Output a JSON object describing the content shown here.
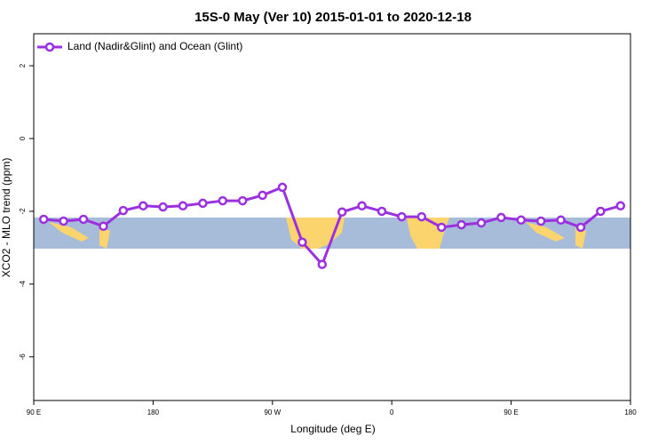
{
  "chart_data": {
    "type": "line",
    "title": "15S-0 May (Ver 10)   2015-01-01 to 2020-12-18",
    "xlabel": "Longitude (deg E)",
    "ylabel": "XCO2 - MLO trend (ppm)",
    "x": [
      97.5,
      112.5,
      127.5,
      142.5,
      157.5,
      172.5,
      187.5,
      202.5,
      217.5,
      232.5,
      247.5,
      262.5,
      277.5,
      292.5,
      307.5,
      322.5,
      337.5,
      352.5,
      367.5,
      382.5,
      397.5,
      412.5,
      427.5,
      442.5,
      457.5,
      472.5,
      487.5,
      502.5,
      517.5,
      532.5
    ],
    "series": [
      {
        "name": "Land (Nadir&Glint) and Ocean (Glint)",
        "color": "#9b30e0",
        "values": [
          -2.22,
          -2.27,
          -2.22,
          -2.41,
          -1.98,
          -1.85,
          -1.88,
          -1.85,
          -1.78,
          -1.71,
          -1.71,
          -1.56,
          -1.34,
          -2.85,
          -3.46,
          -2.02,
          -1.85,
          -2.0,
          -2.15,
          -2.15,
          -2.44,
          -2.37,
          -2.32,
          -2.17,
          -2.24,
          -2.27,
          -2.24,
          -2.44,
          -2.0,
          -1.85
        ]
      }
    ],
    "xlim": [
      90,
      540
    ],
    "xticks": [
      {
        "value": 90,
        "label": "90 E"
      },
      180,
      {
        "value": 270,
        "label": "90 W"
      },
      {
        "value": 360,
        "label": "0"
      },
      {
        "value": 450,
        "label": "90 E"
      },
      {
        "value": 540,
        "label": "180"
      }
    ],
    "ylim": [
      -7.2,
      2.88
    ],
    "yticks": [
      -6,
      -4,
      -2,
      0,
      2
    ],
    "legend": "top-left"
  }
}
